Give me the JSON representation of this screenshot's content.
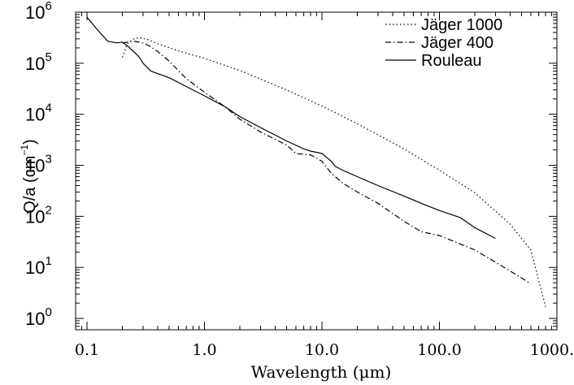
{
  "chart_data": {
    "type": "line",
    "xscale": "log",
    "yscale": "log",
    "xlim": [
      0.08,
      1000
    ],
    "ylim": [
      0.6,
      1000000
    ],
    "xlabel": "Wavelength (μm)",
    "ylabel_main": "Q/a (cm",
    "ylabel_exp": "−1",
    "ylabel_close": ")",
    "x_ticks": [
      {
        "value": 0.1,
        "label": "0.1"
      },
      {
        "value": 1,
        "label": "1.0"
      },
      {
        "value": 10,
        "label": "10.0"
      },
      {
        "value": 100,
        "label": "100.0"
      },
      {
        "value": 1000,
        "label": "1000.0"
      }
    ],
    "y_ticks": [
      {
        "value": 1,
        "base": "10",
        "exp": "0"
      },
      {
        "value": 10,
        "base": "10",
        "exp": "1"
      },
      {
        "value": 100,
        "base": "10",
        "exp": "2"
      },
      {
        "value": 1000,
        "base": "10",
        "exp": "3"
      },
      {
        "value": 10000,
        "base": "10",
        "exp": "4"
      },
      {
        "value": 100000,
        "base": "10",
        "exp": "5"
      },
      {
        "value": 1000000,
        "base": "10",
        "exp": "6"
      }
    ],
    "legend_position": "top-right",
    "series": [
      {
        "name": "Jäger 1000",
        "style": "dotted",
        "points": [
          [
            0.2,
            130000
          ],
          [
            0.22,
            240000
          ],
          [
            0.25,
            300000
          ],
          [
            0.28,
            320000
          ],
          [
            0.33,
            290000
          ],
          [
            0.4,
            240000
          ],
          [
            0.6,
            175000
          ],
          [
            1,
            125000
          ],
          [
            2,
            72000
          ],
          [
            5,
            30000
          ],
          [
            10,
            14500
          ],
          [
            20,
            6500
          ],
          [
            50,
            2100
          ],
          [
            100,
            800
          ],
          [
            200,
            290
          ],
          [
            400,
            70
          ],
          [
            600,
            22
          ],
          [
            800,
            1.7
          ]
        ]
      },
      {
        "name": "Jäger 400",
        "style": "dashdot",
        "points": [
          [
            0.2,
            250000
          ],
          [
            0.25,
            270000
          ],
          [
            0.3,
            250000
          ],
          [
            0.35,
            210000
          ],
          [
            0.4,
            170000
          ],
          [
            0.5,
            110000
          ],
          [
            0.7,
            50000
          ],
          [
            1,
            27000
          ],
          [
            1.5,
            14000
          ],
          [
            2,
            8000
          ],
          [
            3,
            4500
          ],
          [
            5,
            2500
          ],
          [
            6,
            1700
          ],
          [
            8,
            1600
          ],
          [
            10,
            1200
          ],
          [
            12,
            700
          ],
          [
            15,
            450
          ],
          [
            20,
            300
          ],
          [
            30,
            180
          ],
          [
            50,
            80
          ],
          [
            70,
            50
          ],
          [
            100,
            42
          ],
          [
            200,
            22
          ],
          [
            400,
            8.5
          ],
          [
            600,
            4.8
          ]
        ]
      },
      {
        "name": "Rouleau",
        "style": "solid",
        "points": [
          [
            0.1,
            800000
          ],
          [
            0.12,
            480000
          ],
          [
            0.15,
            270000
          ],
          [
            0.18,
            250000
          ],
          [
            0.2,
            260000
          ],
          [
            0.22,
            220000
          ],
          [
            0.25,
            170000
          ],
          [
            0.28,
            130000
          ],
          [
            0.3,
            100000
          ],
          [
            0.35,
            70000
          ],
          [
            0.5,
            52000
          ],
          [
            0.7,
            35000
          ],
          [
            1,
            23000
          ],
          [
            1.5,
            14000
          ],
          [
            2,
            9000
          ],
          [
            3,
            5500
          ],
          [
            5,
            3000
          ],
          [
            7,
            2100
          ],
          [
            8,
            1900
          ],
          [
            10,
            1700
          ],
          [
            12,
            1200
          ],
          [
            13,
            950
          ],
          [
            15,
            800
          ],
          [
            20,
            600
          ],
          [
            30,
            400
          ],
          [
            50,
            250
          ],
          [
            70,
            180
          ],
          [
            100,
            130
          ],
          [
            150,
            95
          ],
          [
            200,
            60
          ],
          [
            300,
            37
          ]
        ]
      }
    ]
  }
}
